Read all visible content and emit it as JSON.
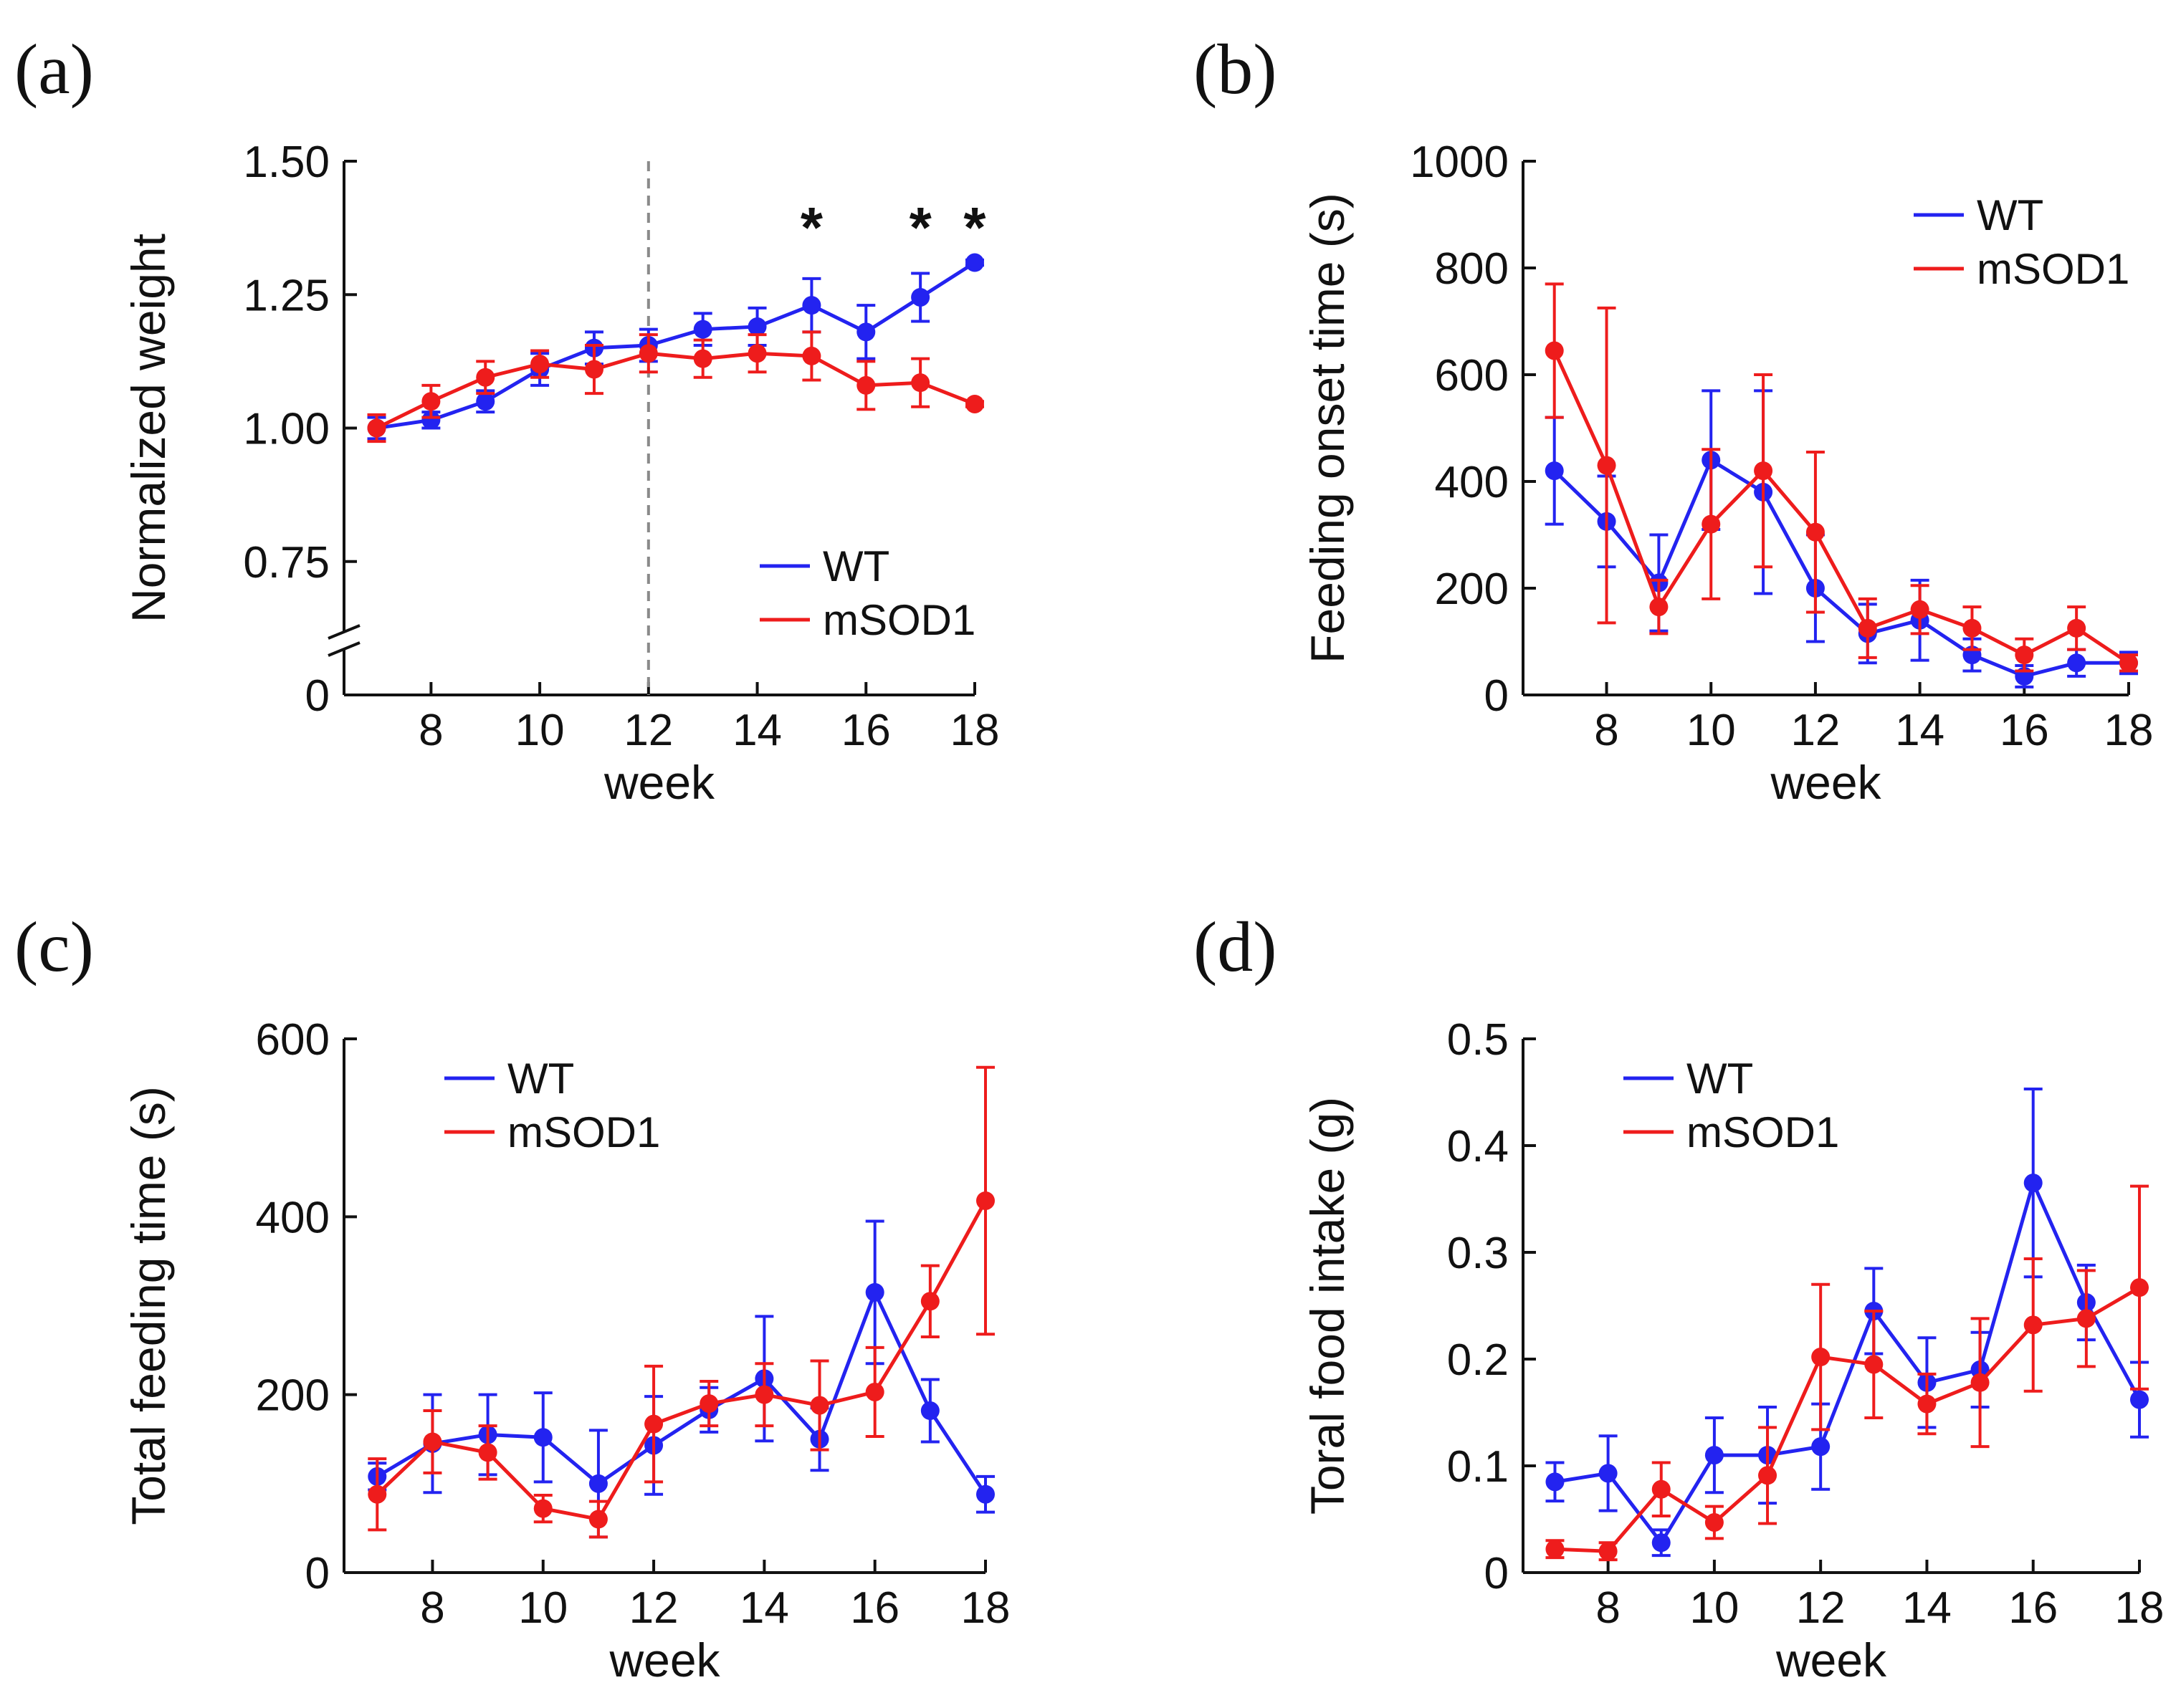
{
  "colors": {
    "wt": "#2323f0",
    "msod1": "#ee1c1c",
    "axis": "#111111",
    "dashed": "#8a8a8a"
  },
  "chart_data": [
    {
      "id": "a",
      "type": "line",
      "panel_label": "(a)",
      "xlabel": "week",
      "ylabel": "Normalized weight",
      "xticks": [
        8,
        10,
        12,
        14,
        16,
        18
      ],
      "yticks": [
        "0",
        "0.75",
        "1.00",
        "1.25",
        "1.50"
      ],
      "ytick_values": [
        0.5,
        0.75,
        1.0,
        1.25,
        1.5
      ],
      "xlim": [
        6.4,
        18
      ],
      "ylim": [
        0.5,
        1.5
      ],
      "axis_break": true,
      "vline_week": 12,
      "significance": [
        {
          "week": 15,
          "text": "*"
        },
        {
          "week": 17,
          "text": "*"
        },
        {
          "week": 18,
          "text": "*"
        }
      ],
      "legend": [
        "WT",
        "mSOD1"
      ],
      "legend_position": "bottom-right",
      "x": [
        7,
        8,
        9,
        10,
        11,
        12,
        13,
        14,
        15,
        16,
        17,
        18
      ],
      "series": [
        {
          "name": "WT",
          "color_key": "wt",
          "values": [
            1.0,
            1.015,
            1.05,
            1.11,
            1.15,
            1.155,
            1.185,
            1.19,
            1.23,
            1.18,
            1.245,
            1.31
          ],
          "errors": [
            0.02,
            0.015,
            0.02,
            0.03,
            0.03,
            0.03,
            0.03,
            0.035,
            0.05,
            0.05,
            0.045,
            0.005
          ]
        },
        {
          "name": "mSOD1",
          "color_key": "msod1",
          "values": [
            1.0,
            1.05,
            1.095,
            1.12,
            1.11,
            1.14,
            1.13,
            1.14,
            1.135,
            1.08,
            1.085,
            1.045
          ],
          "errors": [
            0.025,
            0.03,
            0.03,
            0.025,
            0.045,
            0.035,
            0.035,
            0.035,
            0.045,
            0.045,
            0.045,
            0.005
          ]
        }
      ]
    },
    {
      "id": "b",
      "type": "line",
      "panel_label": "(b)",
      "xlabel": "week",
      "ylabel": "Feeding onset time (s)",
      "xticks": [
        8,
        10,
        12,
        14,
        16,
        18
      ],
      "yticks": [
        "0",
        "200",
        "400",
        "600",
        "800",
        "1000"
      ],
      "ytick_values": [
        0,
        200,
        400,
        600,
        800,
        1000
      ],
      "xlim": [
        6.4,
        18
      ],
      "ylim": [
        0,
        1000
      ],
      "legend": [
        "WT",
        "mSOD1"
      ],
      "legend_position": "top-right",
      "x": [
        7,
        8,
        9,
        10,
        11,
        12,
        13,
        14,
        15,
        16,
        17,
        18
      ],
      "series": [
        {
          "name": "WT",
          "color_key": "wt",
          "values": [
            420,
            325,
            210,
            440,
            380,
            200,
            115,
            140,
            75,
            35,
            60,
            60
          ],
          "errors": [
            100,
            85,
            90,
            130,
            190,
            100,
            55,
            75,
            30,
            20,
            25,
            20
          ]
        },
        {
          "name": "mSOD1",
          "color_key": "msod1",
          "values": [
            645,
            430,
            165,
            320,
            420,
            305,
            125,
            160,
            125,
            75,
            125,
            60
          ],
          "errors": [
            125,
            295,
            50,
            140,
            180,
            150,
            55,
            45,
            40,
            30,
            40,
            15
          ]
        }
      ]
    },
    {
      "id": "c",
      "type": "line",
      "panel_label": "(c)",
      "xlabel": "week",
      "ylabel": "Total feeding time (s)",
      "xticks": [
        8,
        10,
        12,
        14,
        16,
        18
      ],
      "yticks": [
        "0",
        "200",
        "400",
        "600"
      ],
      "ytick_values": [
        0,
        200,
        400,
        600
      ],
      "xlim": [
        6.4,
        18
      ],
      "ylim": [
        0,
        600
      ],
      "legend": [
        "WT",
        "mSOD1"
      ],
      "legend_position": "top-left",
      "x": [
        7,
        8,
        9,
        10,
        11,
        12,
        13,
        14,
        15,
        16,
        17,
        18
      ],
      "series": [
        {
          "name": "WT",
          "color_key": "wt",
          "values": [
            108,
            145,
            155,
            152,
            100,
            143,
            183,
            218,
            150,
            315,
            182,
            88
          ],
          "errors": [
            15,
            55,
            45,
            50,
            60,
            55,
            25,
            70,
            35,
            80,
            35,
            20
          ]
        },
        {
          "name": "mSOD1",
          "color_key": "msod1",
          "values": [
            88,
            147,
            135,
            72,
            60,
            167,
            190,
            200,
            188,
            203,
            305,
            418
          ],
          "errors": [
            40,
            35,
            30,
            15,
            20,
            65,
            25,
            35,
            50,
            50,
            40,
            150
          ]
        }
      ]
    },
    {
      "id": "d",
      "type": "line",
      "panel_label": "(d)",
      "xlabel": "week",
      "ylabel": "Toral food intake (g)",
      "xticks": [
        8,
        10,
        12,
        14,
        16,
        18
      ],
      "yticks": [
        "0",
        "0.1",
        "0.2",
        "0.3",
        "0.4",
        "0.5"
      ],
      "ytick_values": [
        0,
        0.1,
        0.2,
        0.3,
        0.4,
        0.5
      ],
      "xlim": [
        6.4,
        18
      ],
      "ylim": [
        0,
        0.5
      ],
      "legend": [
        "WT",
        "mSOD1"
      ],
      "legend_position": "top-left",
      "x": [
        7,
        8,
        9,
        10,
        11,
        12,
        13,
        14,
        15,
        16,
        17,
        18
      ],
      "series": [
        {
          "name": "WT",
          "color_key": "wt",
          "values": [
            0.085,
            0.093,
            0.028,
            0.11,
            0.11,
            0.118,
            0.245,
            0.178,
            0.19,
            0.365,
            0.253,
            0.162
          ],
          "errors": [
            0.018,
            0.035,
            0.012,
            0.035,
            0.045,
            0.04,
            0.04,
            0.042,
            0.035,
            0.088,
            0.035,
            0.035
          ]
        },
        {
          "name": "mSOD1",
          "color_key": "msod1",
          "values": [
            0.022,
            0.02,
            0.078,
            0.047,
            0.091,
            0.202,
            0.195,
            0.158,
            0.178,
            0.232,
            0.238,
            0.267
          ],
          "errors": [
            0.008,
            0.008,
            0.025,
            0.015,
            0.045,
            0.068,
            0.05,
            0.028,
            0.06,
            0.062,
            0.045,
            0.095
          ]
        }
      ]
    }
  ]
}
